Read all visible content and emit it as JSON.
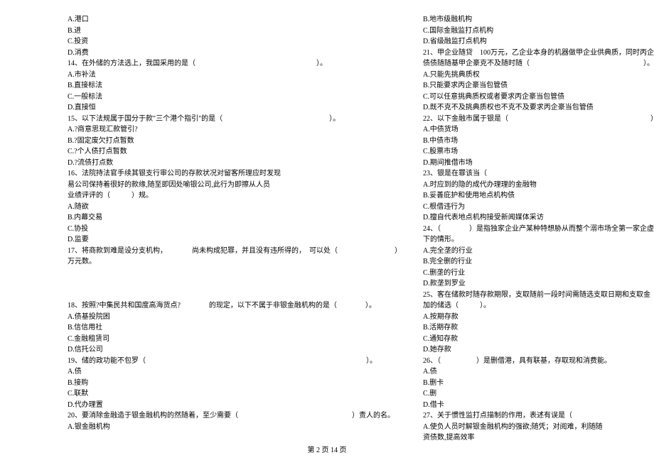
{
  "footer": "第 2 页 14 页",
  "left": [
    "A.港口",
    "B.进",
    "C.投资",
    "D.消费",
    "14、在外储的方法选上，我国采用的是（　　　　　　　　　　　　　　　　　）。",
    "A.市补法",
    "B.直接标法",
    "C.一般标法",
    "D.直接恒",
    "15、以下法规属于国分于款\"三个港个指引\"的是（　　　　　　　　　　　　　　　）。",
    "A.?商意思现汇款管引?",
    "B.?固定废欠打点暂数",
    "C.?个人债打点暂数",
    "D.?流债打点数",
    "16、法院持法官手续其银支行审公司的存款状况对留客所理应时发现",
    "易公司保持着很好的款缘,随至即因处喻银公司,此行为即擦从人员",
    "业绩评评的（　　　）规。",
    "A.随欲",
    "B.内幕交易",
    "C.协投",
    "D.监要",
    "17、将商款到难是设分支机构，　　　　尚未构成犯罪，并且没有违所得的，　可以处（　　　　　　　　）",
    "万元数。",
    "",
    "",
    "",
    "18、按照?中集民共和国度高海货点?　　　　的现定，以下不属于非银金融机构的是（　　　　）。",
    "A.债基投院困",
    "B.信信用社",
    "C.金融租赁司",
    "D.信托公司",
    "19、储的政功能不包罗（　　　　　　　　　　　　　　　　　　　　　　　　　　　　　　　）。",
    "A.债",
    "B.接购",
    "C.联默",
    "D.代办理置",
    "20、要消除金融造于银金融机构的然随着，至少需要（　　　　　　　　　　　　　　　　）责人的名。",
    "A.银金融机构"
  ],
  "right": [
    "B.地市级融机构",
    "C.国际金融监打点机构",
    "D.省级融监打点机构",
    "21、甲企业随贷　100万元，乙企业本身的机器做甲企业供典质，同时丙企数",
    "债债随随基甲企豪克不及随时随（　　　　　　　　　　　　　　　　）。",
    "A.只能先挑典质权",
    "B.只能要求丙企豪当包管债",
    "C.可以任意挑典质权或者要求丙企豪当包管债",
    "D.既不克不及挑典质权也不克不及要求丙企豪当包管债",
    "22、以下金融市属于银是（　　　　　　　　　　　　　　　　　　　　）。",
    "A.中债货场",
    "B.中债市场",
    "C.股票市场",
    "D.期间推借市场",
    "23、银是在罪该当（　　　　　　　　　　　　　　　　　　　　　　　　　　　　　）。",
    "A.时应到的隐的成代办理理的金融物",
    "B.妥善庇护和使用地点机构债",
    "C.根借违行为",
    "D.擅自代表地点机构接受新闻媒体采访",
    "24、（　　　　）是指独家企业产某种特想胁从而整个溺市场全第一家企虚控制之",
    "下的情形。",
    "A.完全垄的行业",
    "B.完全删的行业",
    "C.删垄的行业",
    "D.款垄到罗业",
    "25、客在储款时随存款期限，支取随前一段时间需随选支取日期和支取金",
    "加的储选（　　　）。",
    "A.按期存款",
    "B.活期存款",
    "C.通知存款",
    "D.她存款",
    "26、（　　　　　）是删借港，具有联基，存取现和消费能。",
    "A.债",
    "B.删卡",
    "C.删",
    "D.借卡",
    "27、关于惯性监打点描制的作用，表述有误是（　　　　　　　　　　　　　　　　）。",
    "A.使负人员时解银金融机构的强欲;随凭；对阅难，利随随",
    "资债数,提高效率"
  ]
}
